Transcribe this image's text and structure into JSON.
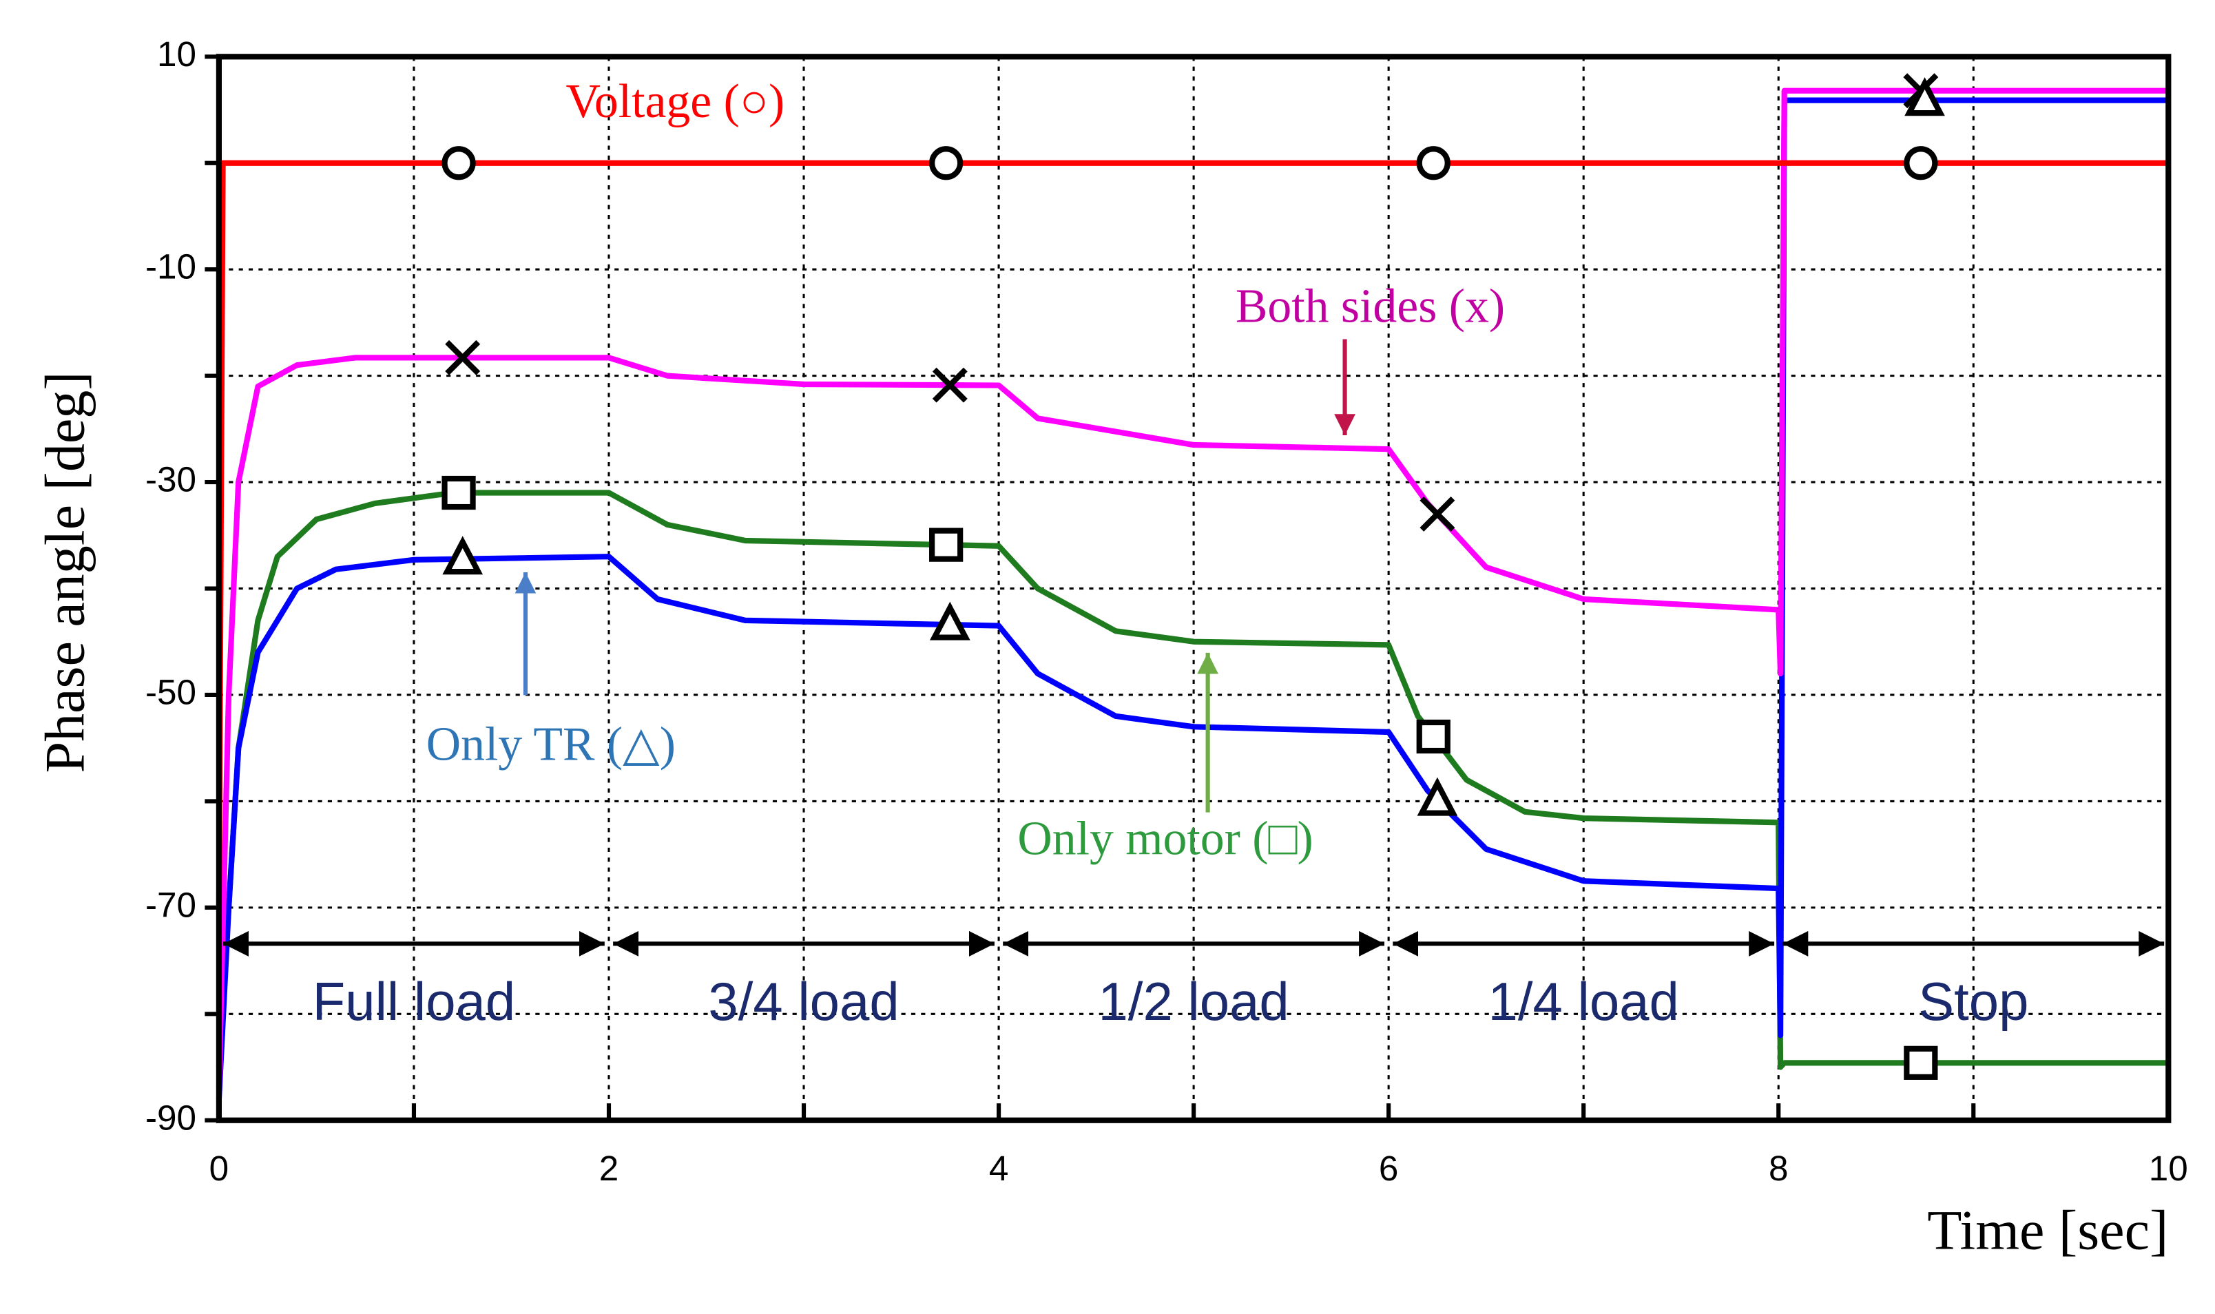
{
  "chart_data": {
    "type": "line",
    "x_label": "Time [sec]",
    "y_label": "Phase angle [deg]",
    "xlim": [
      0,
      10
    ],
    "xticks": [
      0,
      2,
      4,
      6,
      8,
      10
    ],
    "xminor_ticks": [
      1,
      3,
      5,
      7,
      9
    ],
    "ylim": [
      -90,
      10
    ],
    "yticks": [
      10,
      -10,
      -30,
      -50,
      -70,
      -90
    ],
    "yminor_ticks": [
      0,
      -20,
      -40,
      -60,
      -80
    ],
    "grid": true,
    "series": [
      {
        "name": "Voltage",
        "color": "#ff0000",
        "marker": "circle",
        "x": [
          0,
          0.02,
          10
        ],
        "values": [
          -70,
          0,
          0
        ],
        "marker_x": [
          1.23,
          3.73,
          6.23,
          8.73
        ]
      },
      {
        "name": "Both sides",
        "color": "#ff00ff",
        "marker": "x",
        "x": [
          0,
          0.05,
          0.1,
          0.2,
          0.4,
          0.7,
          2.0,
          2.3,
          3.0,
          4.0,
          4.2,
          5.0,
          6.0,
          6.2,
          6.5,
          7.0,
          8.0,
          8.01,
          8.03,
          10
        ],
        "values": [
          -87,
          -50,
          -30,
          -21,
          -19,
          -18.3,
          -18.3,
          -20,
          -20.8,
          -20.9,
          -24,
          -26.5,
          -26.9,
          -32,
          -38,
          -41,
          -42,
          -48,
          6.8,
          6.8
        ],
        "marker_x": [
          1.25,
          3.75,
          6.25,
          8.73
        ]
      },
      {
        "name": "Only motor",
        "color": "#1e7b1e",
        "marker": "square",
        "x": [
          0,
          0.1,
          0.2,
          0.3,
          0.5,
          0.8,
          1.2,
          2.0,
          2.3,
          2.7,
          4.0,
          4.2,
          4.6,
          5.0,
          6.0,
          6.15,
          6.4,
          6.7,
          7.0,
          8.0,
          8.01,
          8.03,
          10
        ],
        "values": [
          -85,
          -55,
          -43,
          -37,
          -33.5,
          -32,
          -31,
          -31,
          -34,
          -35.5,
          -36,
          -40,
          -44,
          -45,
          -45.3,
          -52,
          -58,
          -61,
          -61.6,
          -62,
          -85,
          -84.6,
          -84.6
        ],
        "marker_x": [
          1.23,
          3.73,
          6.23,
          8.73
        ]
      },
      {
        "name": "Only TR",
        "color": "#0000ff",
        "marker": "triangle",
        "x": [
          0,
          0.05,
          0.1,
          0.2,
          0.4,
          0.6,
          1.0,
          2.0,
          2.25,
          2.7,
          4.0,
          4.2,
          4.6,
          5.0,
          6.0,
          6.2,
          6.5,
          7.0,
          8.0,
          8.01,
          8.03,
          10
        ],
        "values": [
          -88,
          -70,
          -55,
          -46,
          -40,
          -38.2,
          -37.3,
          -37,
          -41,
          -43,
          -43.5,
          -48,
          -52,
          -53,
          -53.5,
          -59,
          -64.5,
          -67.5,
          -68.2,
          -82,
          5.9,
          5.9
        ],
        "marker_x": [
          1.25,
          3.75,
          6.25,
          8.75
        ]
      }
    ],
    "annotations": [
      {
        "text": "Voltage (○)"
      },
      {
        "text": "Both sides (x)"
      },
      {
        "text": "Only motor (□)"
      },
      {
        "text": "Only TR (△)"
      }
    ],
    "load_periods": [
      {
        "label": "Full load",
        "start": 0,
        "end": 2
      },
      {
        "label": "3/4 load",
        "start": 2,
        "end": 4
      },
      {
        "label": "1/2 load",
        "start": 4,
        "end": 6
      },
      {
        "label": "1/4 load",
        "start": 6,
        "end": 8
      },
      {
        "label": "Stop",
        "start": 8,
        "end": 10
      }
    ]
  }
}
